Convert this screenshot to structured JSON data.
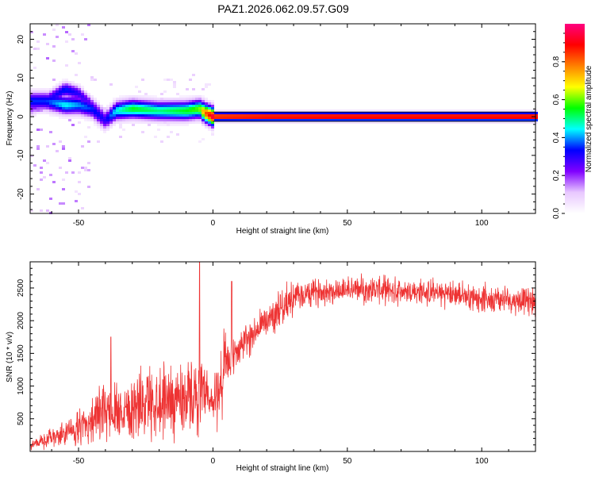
{
  "chart_data": [
    {
      "type": "heatmap",
      "title": "PAZ1.2026.062.09.57.G09",
      "xlabel": "Height of straight line (km)",
      "ylabel": "Frequency (Hz)",
      "xlim": [
        -68,
        120
      ],
      "ylim": [
        -25,
        24
      ],
      "xticks": [
        -50,
        0,
        50,
        100
      ],
      "yticks": [
        -20,
        -10,
        0,
        10,
        20
      ],
      "colorbar": {
        "label": "Normalized spectral amplitude",
        "range": [
          0,
          1
        ],
        "ticks": [
          0.0,
          0.2,
          0.4,
          0.6,
          0.8
        ],
        "colors": [
          "#ffffff",
          "#e8c8ff",
          "#8000ff",
          "#0000ff",
          "#00ffff",
          "#00ff00",
          "#ffff00",
          "#ff8000",
          "#ff0000",
          "#ff0080"
        ]
      },
      "ridge": {
        "x": [
          -62,
          -55,
          -50,
          -45,
          -40,
          -36,
          -30,
          -20,
          -10,
          -5,
          -3,
          0,
          20,
          50,
          100,
          120
        ],
        "y": [
          4,
          3,
          3,
          2,
          -1,
          1.5,
          2,
          1.5,
          1.5,
          2,
          1,
          0,
          0,
          0,
          0,
          0
        ],
        "peak": [
          0.35,
          0.45,
          0.4,
          0.35,
          0.3,
          0.45,
          0.55,
          0.5,
          0.55,
          0.6,
          0.8,
          0.95,
          0.98,
          0.99,
          0.99,
          0.99
        ]
      },
      "secondary_ridge": {
        "x": [
          -68,
          -60,
          -55,
          -50,
          -45,
          -40
        ],
        "y": [
          2,
          5,
          7,
          6,
          3,
          0
        ],
        "peak": [
          0.2,
          0.3,
          0.35,
          0.3,
          0.25,
          0.2
        ]
      },
      "grid": false
    },
    {
      "type": "line",
      "xlabel": "Height of straight line (km)",
      "ylabel": "SNR (10 * v/v)",
      "xlim": [
        -68,
        120
      ],
      "ylim": [
        0,
        2900
      ],
      "xticks": [
        -50,
        0,
        50,
        100
      ],
      "yticks": [
        500,
        1000,
        1500,
        2000,
        2500
      ],
      "color": "#ee3333",
      "series": [
        {
          "name": "SNR",
          "x": [
            -68,
            -60,
            -55,
            -50,
            -45,
            -40,
            -35,
            -30,
            -25,
            -20,
            -15,
            -10,
            -5,
            0,
            5,
            10,
            15,
            20,
            25,
            30,
            40,
            50,
            60,
            70,
            80,
            90,
            100,
            110,
            120
          ],
          "y": [
            100,
            200,
            280,
            350,
            500,
            600,
            650,
            700,
            750,
            800,
            800,
            850,
            850,
            700,
            1300,
            1600,
            1800,
            2000,
            2200,
            2350,
            2450,
            2480,
            2480,
            2450,
            2430,
            2400,
            2350,
            2320,
            2300
          ]
        }
      ],
      "spikes": [
        {
          "x": -38,
          "y": 1750
        },
        {
          "x": -5,
          "y": 2900
        },
        {
          "x": 7,
          "y": 2600
        }
      ],
      "grid": false
    }
  ]
}
